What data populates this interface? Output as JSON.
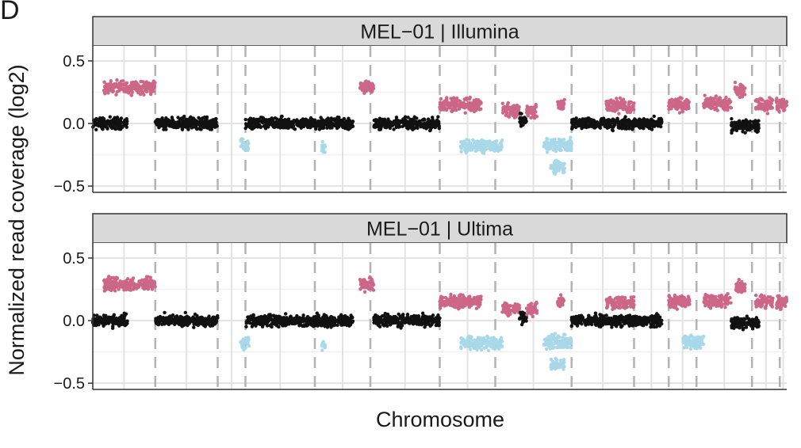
{
  "figure": {
    "panel_letter": "D",
    "ylabel": "Normalized read coverage (log2)",
    "xlabel": "Chromosome"
  },
  "colors": {
    "neutral": "#111111",
    "gain": "#cc6788",
    "loss": "#a9d8e8",
    "strip_bg": "#d9d9d9",
    "strip_border": "#333333",
    "grid_major": "#e3e3e3",
    "grid_minor": "#f0f0f0",
    "chrom_boundary": "#b3b3b3",
    "axis": "#333333"
  },
  "chart_data": [
    {
      "type": "scatter",
      "title": "MEL−01 | Illumina",
      "xlabel": "Chromosome",
      "ylabel": "Normalized read coverage (log2)",
      "ylim": [
        -0.55,
        0.62
      ],
      "yticks": [
        0.5,
        0.0,
        -0.5
      ],
      "ytick_labels": [
        "0.5",
        "0.0",
        "−0.5"
      ],
      "xlim": [
        0,
        100
      ],
      "chromosome_boundaries": [
        9,
        18,
        22,
        32,
        40,
        50,
        58,
        69,
        78,
        83,
        87,
        95,
        99,
        100
      ],
      "grid": true,
      "legend": "none",
      "segments": [
        {
          "x": [
            0,
            5
          ],
          "y": 0.0,
          "class": "neutral"
        },
        {
          "x": [
            1.6,
            9
          ],
          "y": 0.29,
          "class": "gain"
        },
        {
          "x": [
            9,
            18
          ],
          "y": 0.0,
          "class": "neutral"
        },
        {
          "x": [
            21.3,
            22.5
          ],
          "y": -0.18,
          "class": "loss"
        },
        {
          "x": [
            22,
            32
          ],
          "y": 0.0,
          "class": "neutral"
        },
        {
          "x": [
            32,
            37.5
          ],
          "y": 0.0,
          "class": "neutral"
        },
        {
          "x": [
            33.0,
            33.5
          ],
          "y": -0.2,
          "class": "loss"
        },
        {
          "x": [
            38.5,
            40.5
          ],
          "y": 0.29,
          "class": "gain"
        },
        {
          "x": [
            40.5,
            50
          ],
          "y": 0.0,
          "class": "neutral"
        },
        {
          "x": [
            50,
            56
          ],
          "y": 0.15,
          "class": "gain"
        },
        {
          "x": [
            53,
            59
          ],
          "y": -0.18,
          "class": "loss"
        },
        {
          "x": [
            59,
            61.5
          ],
          "y": 0.1,
          "class": "gain"
        },
        {
          "x": [
            61.5,
            62.5
          ],
          "y": 0.03,
          "class": "neutral"
        },
        {
          "x": [
            62.5,
            64
          ],
          "y": 0.09,
          "class": "gain"
        },
        {
          "x": [
            65,
            69
          ],
          "y": -0.17,
          "class": "loss"
        },
        {
          "x": [
            66,
            68
          ],
          "y": -0.35,
          "class": "loss"
        },
        {
          "x": [
            67,
            68
          ],
          "y": 0.15,
          "class": "gain"
        },
        {
          "x": [
            69,
            78
          ],
          "y": 0.0,
          "class": "neutral"
        },
        {
          "x": [
            74,
            78
          ],
          "y": 0.14,
          "class": "gain"
        },
        {
          "x": [
            78,
            82
          ],
          "y": 0.0,
          "class": "neutral"
        },
        {
          "x": [
            83,
            86
          ],
          "y": 0.15,
          "class": "gain"
        },
        {
          "x": [
            88,
            92
          ],
          "y": 0.16,
          "class": "gain"
        },
        {
          "x": [
            92.5,
            94
          ],
          "y": 0.27,
          "class": "gain"
        },
        {
          "x": [
            92,
            96
          ],
          "y": -0.02,
          "class": "neutral"
        },
        {
          "x": [
            95.5,
            98
          ],
          "y": 0.15,
          "class": "gain"
        },
        {
          "x": [
            98.5,
            100
          ],
          "y": 0.15,
          "class": "gain"
        }
      ]
    },
    {
      "type": "scatter",
      "title": "MEL−01 | Ultima",
      "xlabel": "Chromosome",
      "ylabel": "Normalized read coverage (log2)",
      "ylim": [
        -0.55,
        0.62
      ],
      "yticks": [
        0.5,
        0.0,
        -0.5
      ],
      "ytick_labels": [
        "0.5",
        "0.0",
        "−0.5"
      ],
      "xlim": [
        0,
        100
      ],
      "chromosome_boundaries": [
        9,
        18,
        22,
        32,
        40,
        50,
        58,
        69,
        78,
        83,
        87,
        95,
        99,
        100
      ],
      "grid": true,
      "legend": "none",
      "segments": [
        {
          "x": [
            0,
            5
          ],
          "y": 0.0,
          "class": "neutral"
        },
        {
          "x": [
            1.6,
            9
          ],
          "y": 0.29,
          "class": "gain"
        },
        {
          "x": [
            9,
            18
          ],
          "y": 0.0,
          "class": "neutral"
        },
        {
          "x": [
            21.3,
            22.5
          ],
          "y": -0.18,
          "class": "loss"
        },
        {
          "x": [
            22,
            32
          ],
          "y": 0.0,
          "class": "neutral"
        },
        {
          "x": [
            32,
            37.5
          ],
          "y": 0.0,
          "class": "neutral"
        },
        {
          "x": [
            33.0,
            33.5
          ],
          "y": -0.2,
          "class": "loss"
        },
        {
          "x": [
            38.5,
            40.5
          ],
          "y": 0.29,
          "class": "gain"
        },
        {
          "x": [
            40.5,
            50
          ],
          "y": 0.0,
          "class": "neutral"
        },
        {
          "x": [
            50,
            56
          ],
          "y": 0.15,
          "class": "gain"
        },
        {
          "x": [
            53,
            59
          ],
          "y": -0.18,
          "class": "loss"
        },
        {
          "x": [
            59,
            61.5
          ],
          "y": 0.1,
          "class": "gain"
        },
        {
          "x": [
            61.5,
            62.5
          ],
          "y": 0.03,
          "class": "neutral"
        },
        {
          "x": [
            62.5,
            64
          ],
          "y": 0.09,
          "class": "gain"
        },
        {
          "x": [
            65,
            69
          ],
          "y": -0.17,
          "class": "loss"
        },
        {
          "x": [
            66,
            68
          ],
          "y": -0.35,
          "class": "loss"
        },
        {
          "x": [
            67,
            68
          ],
          "y": 0.15,
          "class": "gain"
        },
        {
          "x": [
            69,
            78
          ],
          "y": 0.0,
          "class": "neutral"
        },
        {
          "x": [
            74,
            78
          ],
          "y": 0.14,
          "class": "gain"
        },
        {
          "x": [
            78,
            82
          ],
          "y": 0.0,
          "class": "neutral"
        },
        {
          "x": [
            83,
            86
          ],
          "y": 0.15,
          "class": "gain"
        },
        {
          "x": [
            85,
            88
          ],
          "y": -0.17,
          "class": "loss"
        },
        {
          "x": [
            88,
            92
          ],
          "y": 0.16,
          "class": "gain"
        },
        {
          "x": [
            92.5,
            94
          ],
          "y": 0.27,
          "class": "gain"
        },
        {
          "x": [
            92,
            96
          ],
          "y": -0.02,
          "class": "neutral"
        },
        {
          "x": [
            95.5,
            98
          ],
          "y": 0.15,
          "class": "gain"
        },
        {
          "x": [
            98.5,
            100
          ],
          "y": 0.15,
          "class": "gain"
        }
      ]
    }
  ]
}
